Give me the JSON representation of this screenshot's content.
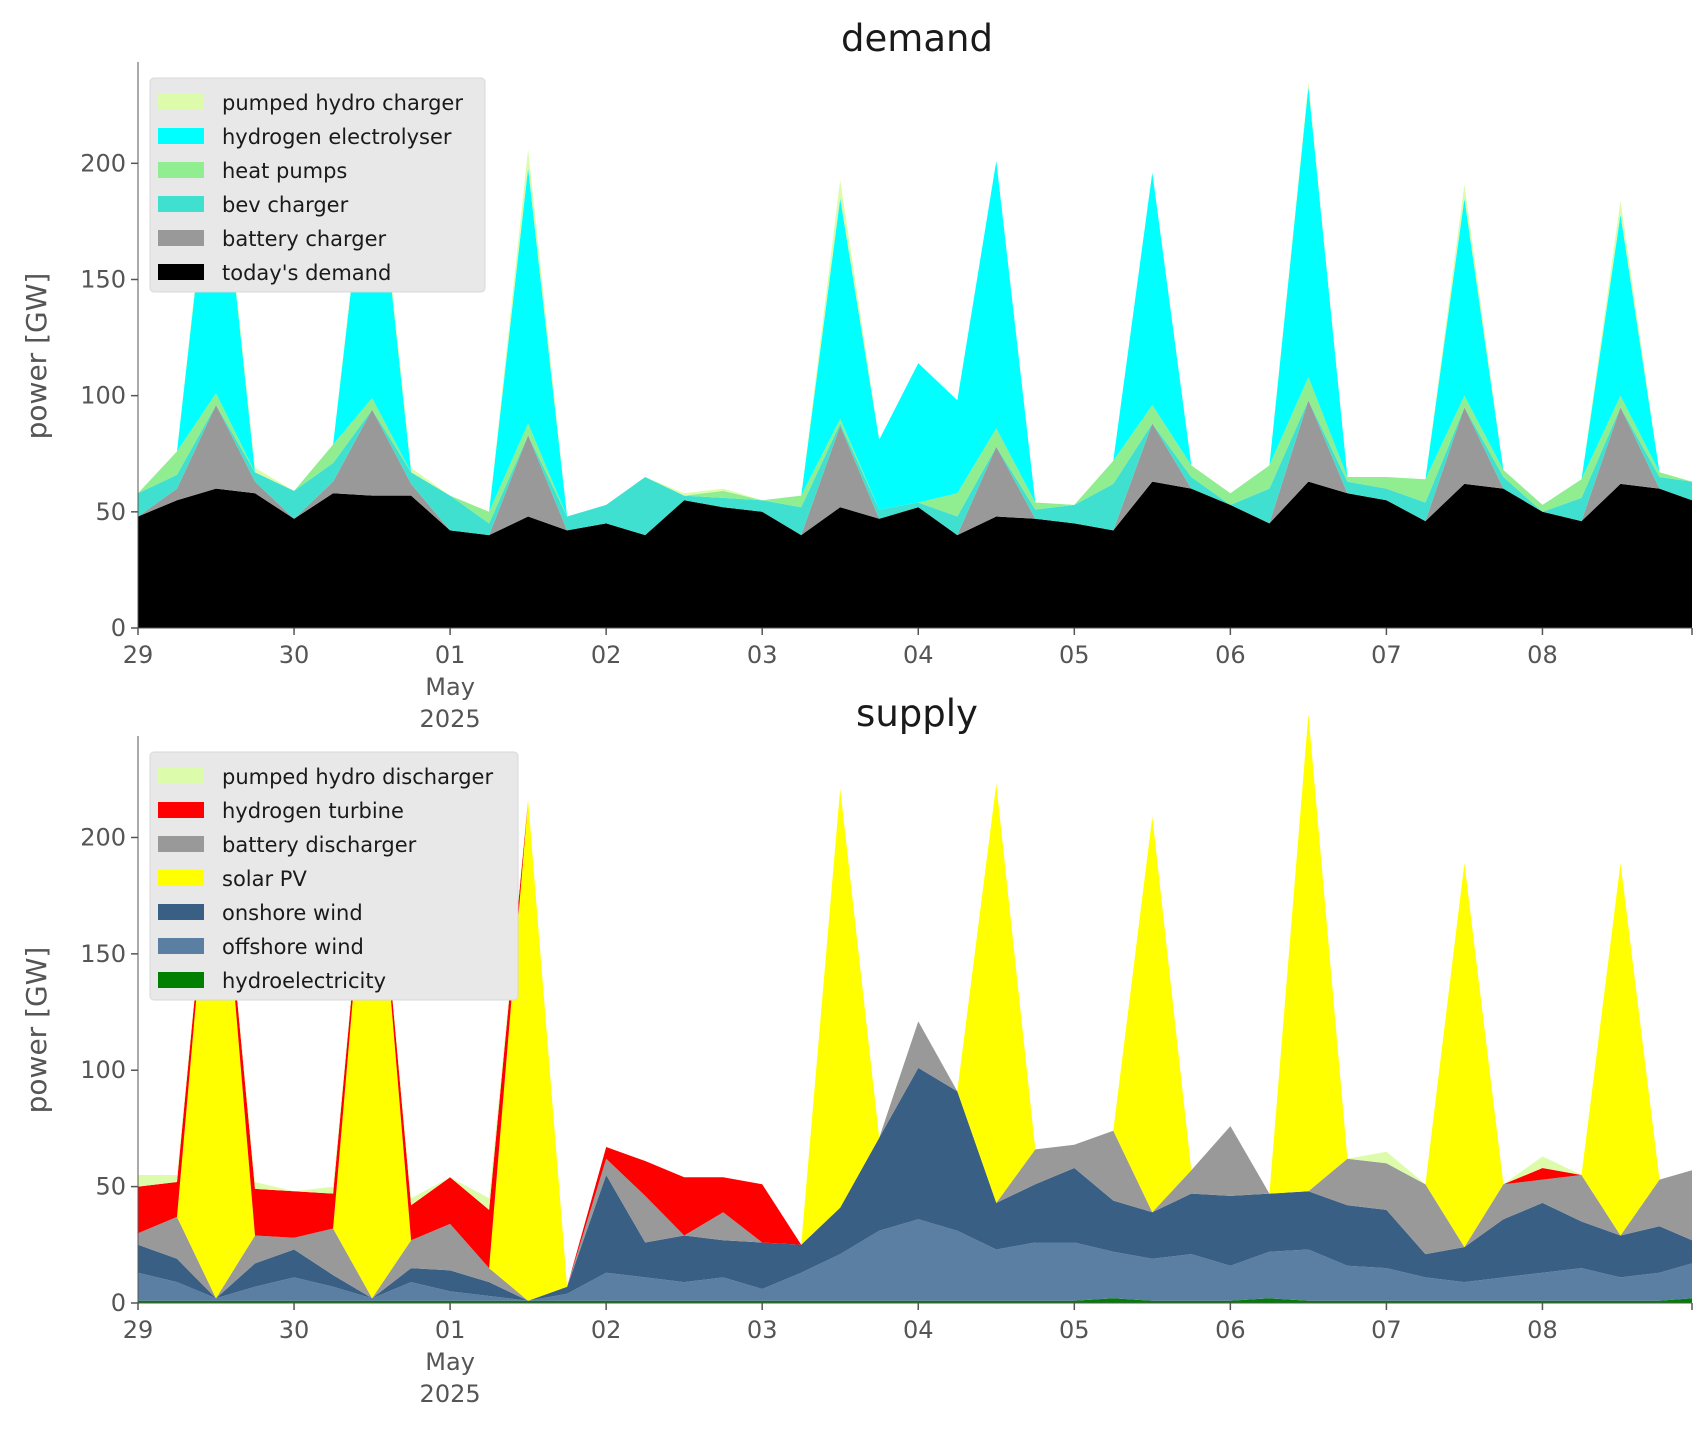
{
  "chart_data": [
    {
      "type": "area",
      "title": "demand",
      "ylabel": "power [GW]",
      "ylim": [
        0,
        235
      ],
      "yticks": [
        0,
        50,
        100,
        150,
        200
      ],
      "xlim": [
        "2025-04-29",
        "2025-05-08 23:00"
      ],
      "xticks": [
        {
          "date": "2025-04-29",
          "label": "29"
        },
        {
          "date": "2025-04-30",
          "label": "30"
        },
        {
          "date": "2025-05-01",
          "label": "01"
        },
        {
          "date": "2025-05-02",
          "label": "02"
        },
        {
          "date": "2025-05-03",
          "label": "03"
        },
        {
          "date": "2025-05-04",
          "label": "04"
        },
        {
          "date": "2025-05-05",
          "label": "05"
        },
        {
          "date": "2025-05-06",
          "label": "06"
        },
        {
          "date": "2025-05-07",
          "label": "07"
        },
        {
          "date": "2025-05-08",
          "label": "08"
        }
      ],
      "x_secondary_labels": [
        "May",
        "2025"
      ],
      "grid": false,
      "legend_position": "top-left",
      "x": [
        "2025-04-29",
        "2025-04-29 06:00",
        "2025-04-29 12:00",
        "2025-04-29 18:00",
        "2025-04-30",
        "2025-04-30 06:00",
        "2025-04-30 12:00",
        "2025-04-30 18:00",
        "2025-05-01",
        "2025-05-01 06:00",
        "2025-05-01 12:00",
        "2025-05-01 18:00",
        "2025-05-02",
        "2025-05-02 06:00",
        "2025-05-02 12:00",
        "2025-05-02 18:00",
        "2025-05-03",
        "2025-05-03 06:00",
        "2025-05-03 12:00",
        "2025-05-03 18:00",
        "2025-05-04",
        "2025-05-04 06:00",
        "2025-05-04 12:00",
        "2025-05-04 18:00",
        "2025-05-05",
        "2025-05-05 06:00",
        "2025-05-05 12:00",
        "2025-05-05 18:00",
        "2025-05-06",
        "2025-05-06 06:00",
        "2025-05-06 12:00",
        "2025-05-06 18:00",
        "2025-05-07",
        "2025-05-07 06:00",
        "2025-05-07 12:00",
        "2025-05-07 18:00",
        "2025-05-08",
        "2025-05-08 06:00",
        "2025-05-08 12:00",
        "2025-05-08 18:00",
        "2025-05-08 23:00"
      ],
      "series": [
        {
          "name": "today's demand",
          "color": "#000000",
          "values": [
            48,
            55,
            60,
            58,
            47,
            58,
            57,
            57,
            42,
            40,
            48,
            42,
            45,
            40,
            55,
            52,
            50,
            40,
            52,
            47,
            52,
            40,
            48,
            47,
            45,
            42,
            63,
            60,
            53,
            45,
            63,
            58,
            55,
            46,
            62,
            60,
            50,
            46,
            62,
            60,
            55
          ]
        },
        {
          "name": "battery charger",
          "color": "#999999",
          "values": [
            0,
            5,
            36,
            5,
            0,
            5,
            37,
            5,
            0,
            0,
            35,
            0,
            0,
            0,
            0,
            0,
            0,
            0,
            35,
            0,
            0,
            0,
            30,
            0,
            0,
            0,
            25,
            0,
            0,
            0,
            35,
            0,
            0,
            0,
            33,
            0,
            0,
            0,
            33,
            0,
            0
          ]
        },
        {
          "name": "bev charger",
          "color": "#40e0d0",
          "values": [
            10,
            6,
            0,
            4,
            12,
            8,
            0,
            5,
            15,
            5,
            0,
            6,
            8,
            25,
            2,
            4,
            5,
            12,
            1,
            4,
            2,
            8,
            0,
            4,
            8,
            20,
            0,
            5,
            0,
            15,
            0,
            5,
            5,
            8,
            0,
            5,
            0,
            10,
            0,
            5,
            8
          ]
        },
        {
          "name": "heat pumps",
          "color": "#90ee90",
          "values": [
            0,
            10,
            5,
            0,
            0,
            8,
            5,
            0,
            0,
            5,
            5,
            0,
            0,
            0,
            0,
            3,
            0,
            5,
            2,
            0,
            0,
            10,
            8,
            3,
            0,
            10,
            8,
            5,
            5,
            10,
            10,
            2,
            5,
            10,
            5,
            3,
            3,
            8,
            5,
            2,
            0
          ]
        },
        {
          "name": "hydrogen electrolyser",
          "color": "#00ffff",
          "values": [
            0,
            0,
            125,
            0,
            0,
            0,
            125,
            0,
            0,
            0,
            110,
            0,
            0,
            0,
            0,
            0,
            0,
            0,
            95,
            30,
            60,
            40,
            115,
            0,
            0,
            0,
            100,
            0,
            0,
            0,
            125,
            0,
            0,
            0,
            85,
            0,
            0,
            0,
            78,
            0,
            0
          ]
        },
        {
          "name": "pumped hydro charger",
          "color": "#ddfcab",
          "values": [
            0,
            0,
            4,
            2,
            0,
            0,
            4,
            2,
            0,
            0,
            8,
            0,
            0,
            0,
            1,
            1,
            0,
            0,
            8,
            0,
            0,
            0,
            0,
            0,
            0,
            0,
            0,
            0,
            0,
            0,
            2,
            0,
            0,
            0,
            6,
            0,
            0,
            0,
            6,
            0,
            0
          ]
        }
      ],
      "legend": [
        "pumped hydro charger",
        "hydrogen electrolyser",
        "heat pumps",
        "bev charger",
        "battery charger",
        "today's demand"
      ]
    },
    {
      "type": "area",
      "title": "supply",
      "ylabel": "power [GW]",
      "ylim": [
        0,
        235
      ],
      "yticks": [
        0,
        50,
        100,
        150,
        200
      ],
      "xlim": [
        "2025-04-29",
        "2025-05-08 23:00"
      ],
      "xticks": [
        {
          "date": "2025-04-29",
          "label": "29"
        },
        {
          "date": "2025-04-30",
          "label": "30"
        },
        {
          "date": "2025-05-01",
          "label": "01"
        },
        {
          "date": "2025-05-02",
          "label": "02"
        },
        {
          "date": "2025-05-03",
          "label": "03"
        },
        {
          "date": "2025-05-04",
          "label": "04"
        },
        {
          "date": "2025-05-05",
          "label": "05"
        },
        {
          "date": "2025-05-06",
          "label": "06"
        },
        {
          "date": "2025-05-07",
          "label": "07"
        },
        {
          "date": "2025-05-08",
          "label": "08"
        }
      ],
      "x_secondary_labels": [
        "May",
        "2025"
      ],
      "grid": false,
      "legend_position": "top-left",
      "x": [
        "2025-04-29",
        "2025-04-29 06:00",
        "2025-04-29 12:00",
        "2025-04-29 18:00",
        "2025-04-30",
        "2025-04-30 06:00",
        "2025-04-30 12:00",
        "2025-04-30 18:00",
        "2025-05-01",
        "2025-05-01 06:00",
        "2025-05-01 12:00",
        "2025-05-01 18:00",
        "2025-05-02",
        "2025-05-02 06:00",
        "2025-05-02 12:00",
        "2025-05-02 18:00",
        "2025-05-03",
        "2025-05-03 06:00",
        "2025-05-03 12:00",
        "2025-05-03 18:00",
        "2025-05-04",
        "2025-05-04 06:00",
        "2025-05-04 12:00",
        "2025-05-04 18:00",
        "2025-05-05",
        "2025-05-05 06:00",
        "2025-05-05 12:00",
        "2025-05-05 18:00",
        "2025-05-06",
        "2025-05-06 06:00",
        "2025-05-06 12:00",
        "2025-05-06 18:00",
        "2025-05-07",
        "2025-05-07 06:00",
        "2025-05-07 12:00",
        "2025-05-07 18:00",
        "2025-05-08",
        "2025-05-08 06:00",
        "2025-05-08 12:00",
        "2025-05-08 18:00",
        "2025-05-08 23:00"
      ],
      "series": [
        {
          "name": "hydroelectricity",
          "color": "#008000",
          "values": [
            1,
            1,
            1,
            1,
            1,
            1,
            1,
            1,
            1,
            1,
            1,
            1,
            1,
            1,
            1,
            1,
            1,
            1,
            1,
            1,
            1,
            1,
            1,
            1,
            1,
            2,
            1,
            1,
            1,
            2,
            1,
            1,
            1,
            1,
            1,
            1,
            1,
            1,
            1,
            1,
            2
          ]
        },
        {
          "name": "offshore wind",
          "color": "#5b7fa3",
          "values": [
            12,
            8,
            1,
            6,
            10,
            6,
            1,
            8,
            4,
            2,
            0,
            3,
            12,
            10,
            8,
            10,
            5,
            12,
            20,
            30,
            35,
            30,
            22,
            25,
            25,
            20,
            18,
            20,
            15,
            20,
            22,
            15,
            14,
            10,
            8,
            10,
            12,
            14,
            10,
            12,
            15
          ]
        },
        {
          "name": "onshore wind",
          "color": "#3a5f85",
          "values": [
            12,
            10,
            0,
            10,
            12,
            5,
            0,
            6,
            9,
            6,
            0,
            3,
            42,
            15,
            20,
            16,
            20,
            12,
            20,
            40,
            65,
            60,
            20,
            25,
            32,
            22,
            20,
            26,
            30,
            25,
            25,
            26,
            25,
            10,
            15,
            25,
            30,
            20,
            18,
            20,
            10
          ]
        },
        {
          "name": "battery discharger",
          "color": "#999999",
          "values": [
            5,
            18,
            0,
            12,
            5,
            20,
            0,
            12,
            20,
            6,
            0,
            0,
            7,
            20,
            0,
            12,
            0,
            0,
            0,
            0,
            20,
            0,
            0,
            15,
            10,
            30,
            0,
            10,
            30,
            0,
            0,
            20,
            20,
            30,
            0,
            15,
            10,
            20,
            0,
            20,
            30
          ]
        },
        {
          "name": "solar PV",
          "color": "#ffff00",
          "values": [
            0,
            0,
            225,
            0,
            0,
            0,
            225,
            0,
            0,
            0,
            215,
            0,
            0,
            0,
            0,
            0,
            0,
            0,
            180,
            0,
            0,
            0,
            180,
            0,
            0,
            0,
            170,
            0,
            0,
            0,
            205,
            0,
            0,
            0,
            165,
            0,
            0,
            0,
            160,
            0,
            0
          ]
        },
        {
          "name": "hydrogen turbine",
          "color": "#ff0000",
          "values": [
            20,
            15,
            0,
            20,
            20,
            15,
            0,
            15,
            20,
            25,
            0,
            0,
            5,
            15,
            25,
            15,
            25,
            0,
            0,
            0,
            0,
            0,
            0,
            0,
            0,
            0,
            0,
            0,
            0,
            0,
            0,
            0,
            0,
            0,
            0,
            0,
            5,
            0,
            0,
            0,
            0
          ]
        },
        {
          "name": "pumped hydro discharger",
          "color": "#ddfcab",
          "values": [
            5,
            3,
            0,
            3,
            0,
            3,
            0,
            3,
            0,
            5,
            0,
            0,
            0,
            0,
            0,
            0,
            0,
            0,
            0,
            0,
            0,
            0,
            0,
            0,
            0,
            0,
            0,
            0,
            0,
            0,
            0,
            0,
            5,
            0,
            0,
            0,
            5,
            0,
            0,
            0,
            0
          ]
        }
      ],
      "legend": [
        "pumped hydro discharger",
        "hydrogen turbine",
        "battery discharger",
        "solar PV",
        "onshore wind",
        "offshore wind",
        "hydroelectricity"
      ]
    }
  ]
}
